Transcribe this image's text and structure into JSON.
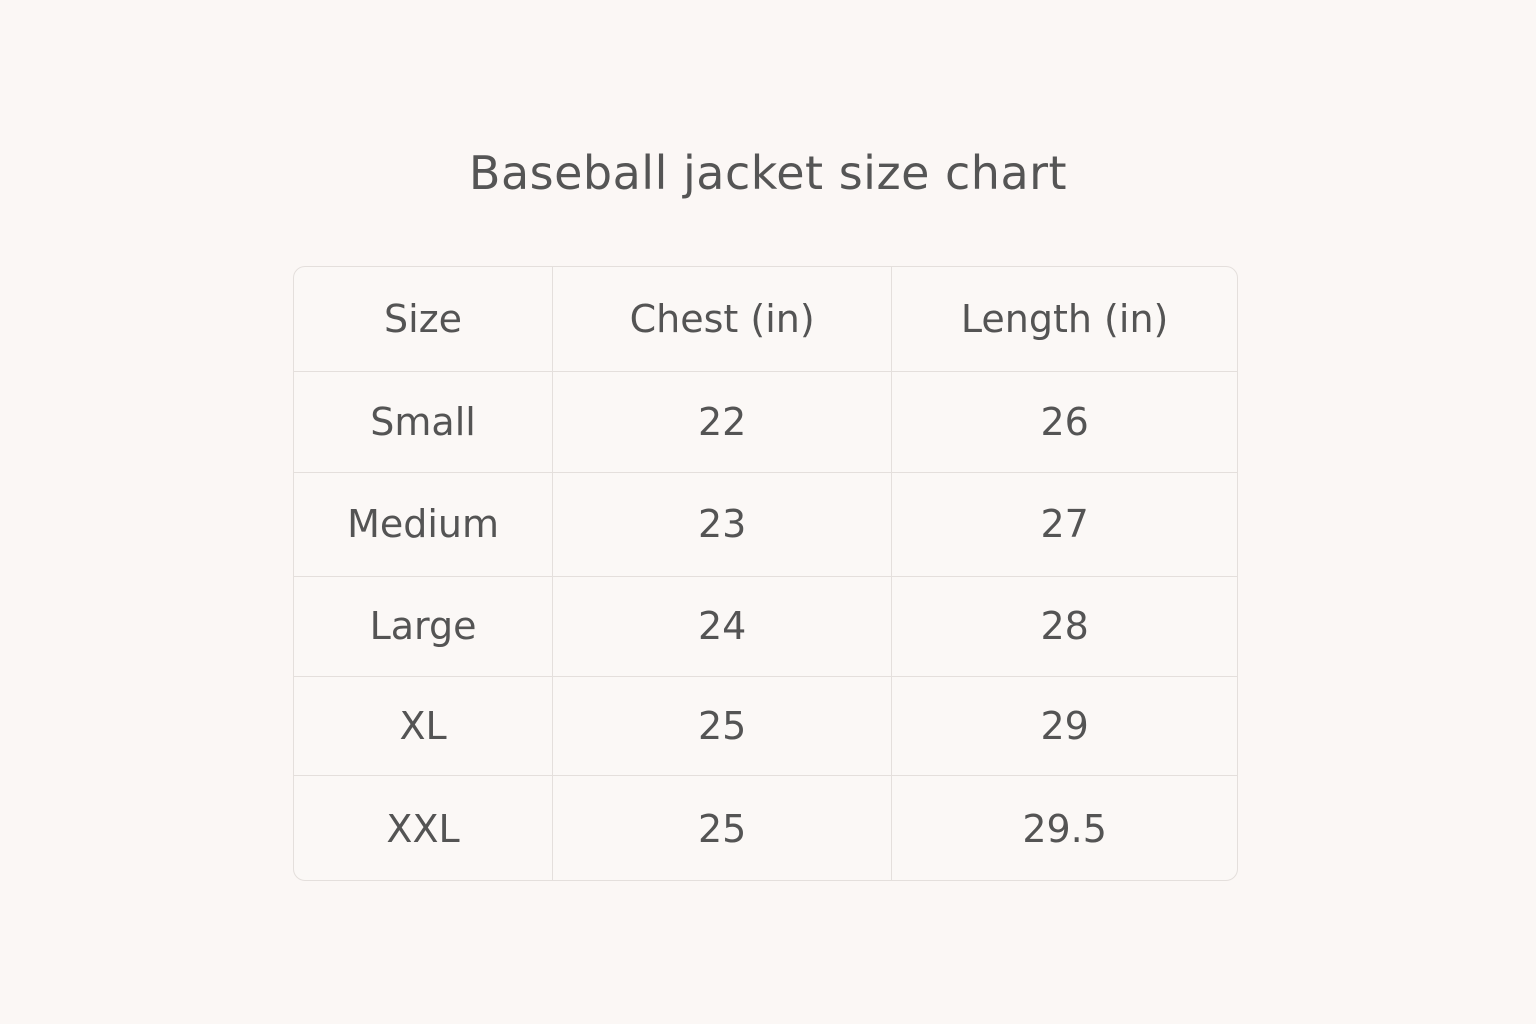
{
  "title": "Baseball jacket size chart",
  "table": {
    "headers": [
      "Size",
      "Chest (in)",
      "Length (in)"
    ],
    "rows": [
      [
        "Small",
        "22",
        "26"
      ],
      [
        "Medium",
        "23",
        "27"
      ],
      [
        "Large",
        "24",
        "28"
      ],
      [
        "XL",
        "25",
        "29"
      ],
      [
        "XXL",
        "25",
        "29.5"
      ]
    ]
  }
}
